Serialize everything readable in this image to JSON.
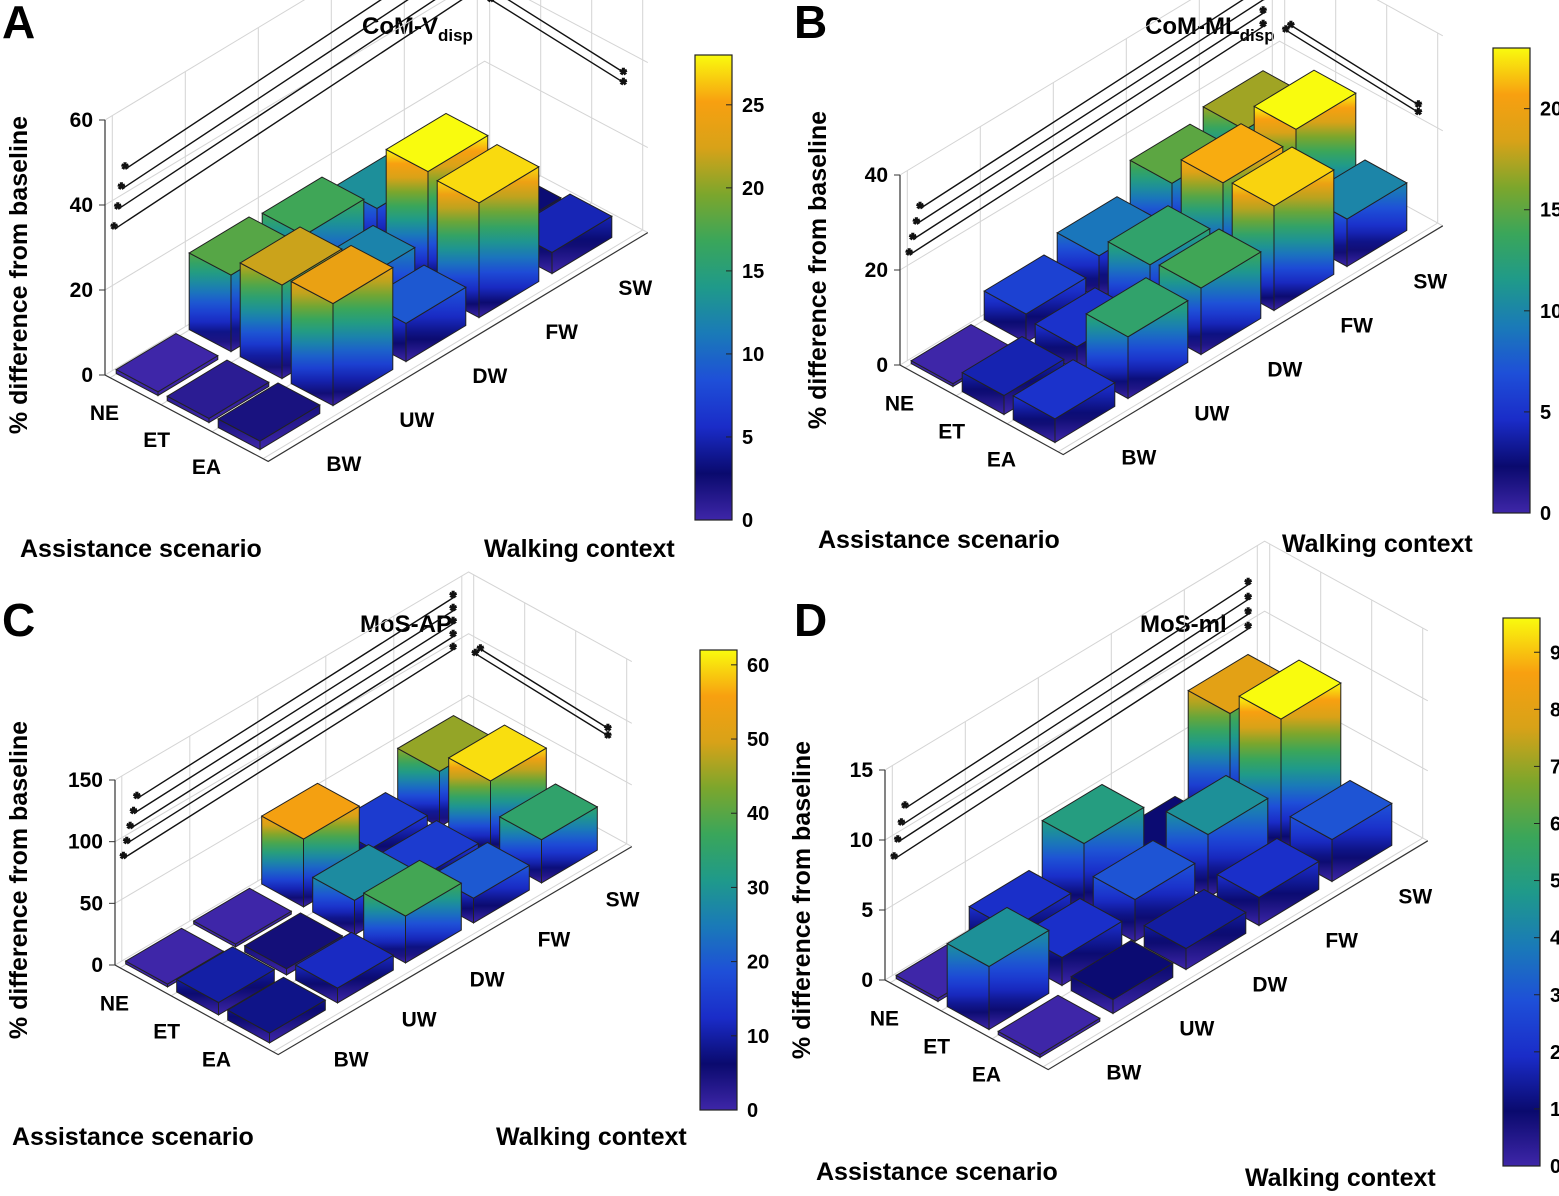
{
  "figure": {
    "categories_scenario": [
      "NE",
      "ET",
      "EA"
    ],
    "categories_context": [
      "BW",
      "UW",
      "DW",
      "FW",
      "SW"
    ],
    "colormap": [
      "#3e26a8",
      "#0a0a6e",
      "#1a2cc8",
      "#1e4fd8",
      "#1a7ab8",
      "#1f9a8a",
      "#3aa65a",
      "#7ca62c",
      "#d8a218",
      "#f8a010",
      "#f9fb0e"
    ]
  },
  "chart_data": [
    {
      "type": "bar3d",
      "panel_letter": "A",
      "title": "CoM-V",
      "title_subscript": "disp",
      "zlabel": "% difference from baseline",
      "xlabel": "Assistance scenario",
      "ylabel": "Walking context",
      "categories_scenario": [
        "NE",
        "ET",
        "EA"
      ],
      "categories_context": [
        "BW",
        "UW",
        "DW",
        "FW",
        "SW"
      ],
      "zlim": [
        0,
        60
      ],
      "zticks": [
        "0",
        "20",
        "40",
        "60"
      ],
      "clim": [
        0,
        28
      ],
      "cticks": [
        "0",
        "5",
        "10",
        "15",
        "20",
        "25"
      ],
      "values": [
        [
          0,
          18,
          17,
          13,
          2
        ],
        [
          1,
          22,
          12,
          28,
          3
        ],
        [
          2,
          24,
          9,
          27,
          5
        ]
      ],
      "significance": {
        "scenario_lines": 4,
        "context_lines": 2
      }
    },
    {
      "type": "bar3d",
      "panel_letter": "B",
      "title": "CoM-ML",
      "title_subscript": "disp",
      "zlabel": "% difference from baseline",
      "xlabel": "Assistance scenario",
      "ylabel": "Walking context",
      "categories_scenario": [
        "NE",
        "ET",
        "EA"
      ],
      "categories_context": [
        "BW",
        "UW",
        "DW",
        "FW",
        "SW"
      ],
      "zlim": [
        0,
        40
      ],
      "zticks": [
        "0",
        "20",
        "40"
      ],
      "clim": [
        0,
        23
      ],
      "cticks": [
        "0",
        "5",
        "10",
        "15",
        "20"
      ],
      "values": [
        [
          0,
          6,
          9,
          15,
          17
        ],
        [
          4,
          5,
          13,
          21,
          23
        ],
        [
          5,
          13,
          14,
          22,
          10
        ]
      ],
      "significance": {
        "scenario_lines": 4,
        "context_lines": 2
      }
    },
    {
      "type": "bar3d",
      "panel_letter": "C",
      "title": "MoS-AP",
      "title_subscript": "",
      "zlabel": "% difference from baseline",
      "xlabel": "Assistance scenario",
      "ylabel": "Walking context",
      "categories_scenario": [
        "NE",
        "ET",
        "EA"
      ],
      "categories_context": [
        "BW",
        "UW",
        "DW",
        "FW",
        "SW"
      ],
      "zlim": [
        0,
        150
      ],
      "zticks": [
        "0",
        "50",
        "100",
        "150"
      ],
      "clim": [
        0,
        62
      ],
      "cticks": [
        "0",
        "10",
        "20",
        "30",
        "40",
        "50",
        "60"
      ],
      "values": [
        [
          0,
          0,
          55,
          15,
          45
        ],
        [
          10,
          5,
          28,
          15,
          60
        ],
        [
          8,
          12,
          38,
          20,
          35
        ]
      ],
      "significance": {
        "scenario_lines": 5,
        "context_lines": 2
      }
    },
    {
      "type": "bar3d",
      "panel_letter": "D",
      "title": "MoS-ml",
      "title_subscript": "",
      "zlabel": "% difference from baseline",
      "xlabel": "Assistance scenario",
      "ylabel": "Walking context",
      "categories_scenario": [
        "NE",
        "ET",
        "EA"
      ],
      "categories_context": [
        "BW",
        "UW",
        "DW",
        "FW",
        "SW"
      ],
      "zlim": [
        0,
        15
      ],
      "zticks": [
        "0",
        "5",
        "10",
        "15"
      ],
      "clim": [
        0,
        9.6
      ],
      "cticks": [
        "0",
        "1",
        "2",
        "3",
        "4",
        "5",
        "6",
        "7",
        "8",
        "9"
      ],
      "values": [
        [
          0,
          2,
          5,
          1,
          8
        ],
        [
          4.5,
          2,
          3,
          4.5,
          9.6
        ],
        [
          0,
          1,
          1.5,
          2,
          3
        ]
      ],
      "significance": {
        "scenario_lines": 4,
        "context_lines": 0
      }
    }
  ]
}
